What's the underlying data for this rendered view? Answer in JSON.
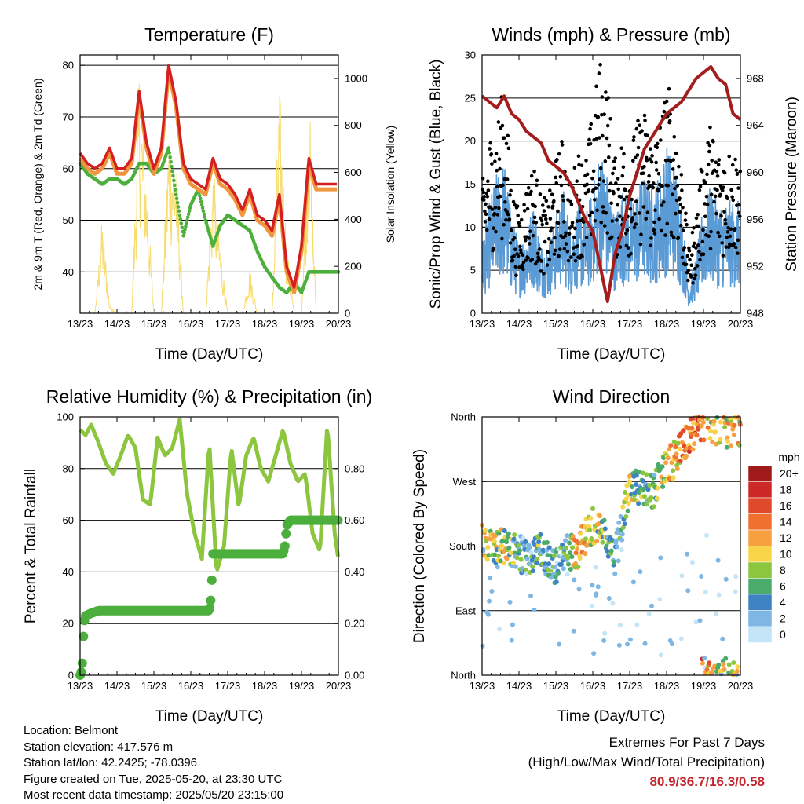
{
  "chart_data": [
    {
      "type": "line",
      "title": "Temperature (F)",
      "xlabel": "Time (Day/UTC)",
      "ylabel": "2m & 9m T (Red, Orange) & 2m Td (Green)",
      "ylabel_right": "Solar Insolation (Yellow)",
      "x_ticks": [
        "13/23",
        "14/23",
        "15/23",
        "16/23",
        "17/23",
        "18/23",
        "19/23",
        "20/23"
      ],
      "ylim": [
        32,
        82
      ],
      "y_ticks": [
        40,
        50,
        60,
        70,
        80
      ],
      "ylim_right": [
        0,
        1100
      ],
      "y_ticks_right": [
        0,
        200,
        400,
        600,
        800,
        1000
      ],
      "grid": "horizontal",
      "colors": {
        "t2m": "#d42020",
        "t9m": "#f0963c",
        "td": "#4daf3c",
        "solar": "#f7dc6f"
      },
      "x": [
        0,
        0.2,
        0.4,
        0.6,
        0.8,
        1.0,
        1.2,
        1.4,
        1.6,
        1.8,
        2.0,
        2.2,
        2.4,
        2.6,
        2.8,
        3.0,
        3.2,
        3.4,
        3.6,
        3.8,
        4.0,
        4.2,
        4.4,
        4.6,
        4.8,
        5.0,
        5.2,
        5.4,
        5.6,
        5.8,
        6.0,
        6.2,
        6.4,
        6.6,
        6.8,
        7.0
      ],
      "series": [
        {
          "name": "2m T",
          "values": [
            63,
            61,
            60,
            61,
            64,
            60,
            60,
            62,
            75,
            65,
            60,
            64,
            80,
            73,
            61,
            58,
            57,
            56,
            62,
            58,
            57,
            55,
            52,
            56,
            51,
            50,
            48,
            55,
            41,
            37,
            45,
            62,
            57,
            57,
            57,
            57
          ]
        },
        {
          "name": "9m T",
          "values": [
            62,
            60,
            59,
            60,
            63,
            59,
            59,
            61,
            74,
            64,
            59,
            63,
            79,
            72,
            60,
            57,
            56,
            55,
            61,
            57,
            56,
            54,
            51,
            55,
            50,
            49,
            47,
            54,
            40,
            36,
            44,
            61,
            56,
            56,
            56,
            56
          ]
        },
        {
          "name": "2m Td",
          "values": [
            61,
            59,
            58,
            57,
            58,
            58,
            57,
            58,
            61,
            61,
            59,
            60,
            64,
            55,
            47,
            53,
            56,
            50,
            45,
            49,
            51,
            50,
            49,
            48,
            44,
            41,
            39,
            37,
            36,
            38,
            36,
            40,
            40,
            40,
            40,
            40
          ]
        },
        {
          "name": "Solar",
          "values": [
            0,
            0,
            0,
            420,
            40,
            0,
            0,
            0,
            1080,
            600,
            0,
            0,
            820,
            700,
            0,
            0,
            0,
            0,
            650,
            300,
            0,
            0,
            0,
            200,
            0,
            0,
            0,
            1000,
            300,
            0,
            0,
            1000,
            0,
            0,
            0,
            0
          ]
        }
      ]
    },
    {
      "type": "scatter",
      "title": "Winds (mph) & Pressure (mb)",
      "xlabel": "Time (Day/UTC)",
      "ylabel": "Sonic/Prop Wind & Gust (Blue, Black)",
      "ylabel_right": "Station Pressure (Maroon)",
      "x_ticks": [
        "13/23",
        "14/23",
        "15/23",
        "16/23",
        "17/23",
        "18/23",
        "19/23",
        "20/23"
      ],
      "ylim": [
        0,
        30
      ],
      "y_ticks": [
        0,
        5,
        10,
        15,
        20,
        25,
        30
      ],
      "ylim_right": [
        948,
        970
      ],
      "y_ticks_right": [
        948,
        952,
        956,
        960,
        964,
        968
      ],
      "grid": "horizontal",
      "colors": {
        "wind": "#5b9bd5",
        "gust": "#000000",
        "pressure": "#a31d1d"
      },
      "pressure_x": [
        0,
        0.2,
        0.4,
        0.6,
        0.8,
        1.0,
        1.2,
        1.4,
        1.6,
        1.8,
        2.0,
        2.2,
        2.4,
        2.6,
        2.8,
        3.0,
        3.2,
        3.4,
        3.6,
        3.8,
        4.0,
        4.2,
        4.4,
        4.6,
        4.8,
        5.0,
        5.2,
        5.4,
        5.6,
        5.8,
        6.0,
        6.2,
        6.4,
        6.6,
        6.8,
        7.0
      ],
      "pressure": [
        966.5,
        966,
        965.5,
        966.5,
        965,
        964.5,
        963.5,
        963,
        962.5,
        961,
        960.5,
        960,
        959,
        957.5,
        956,
        955,
        952,
        949,
        953,
        955,
        958,
        960,
        962,
        963,
        964,
        965,
        965.5,
        966,
        967,
        968,
        968.5,
        969,
        968,
        967.5,
        965,
        964.5
      ],
      "wind_mean": [
        5,
        8,
        10,
        11,
        7,
        5,
        6,
        8,
        5,
        5,
        7,
        9,
        6,
        8,
        7,
        9,
        12,
        10,
        7,
        9,
        8,
        9,
        10,
        9,
        10,
        12,
        11,
        8,
        2,
        4,
        8,
        9,
        8,
        8,
        8,
        8
      ],
      "gust_mean": [
        10,
        14,
        15,
        18,
        10,
        8,
        10,
        12,
        9,
        9,
        12,
        14,
        10,
        13,
        12,
        16,
        20,
        18,
        12,
        14,
        13,
        15,
        16,
        14,
        15,
        18,
        17,
        12,
        5,
        8,
        13,
        15,
        13,
        13,
        13,
        13
      ]
    },
    {
      "type": "line",
      "title": "Relative Humidity (%) & Precipitation (in)",
      "xlabel": "Time (Day/UTC)",
      "ylabel": "Percent & Total Rainfall",
      "x_ticks": [
        "13/23",
        "14/23",
        "15/23",
        "16/23",
        "17/23",
        "18/23",
        "19/23",
        "20/23"
      ],
      "ylim": [
        0,
        100
      ],
      "y_ticks": [
        0,
        20,
        40,
        60,
        80,
        100
      ],
      "ylim_right": [
        0,
        1.0
      ],
      "y_ticks_right": [
        "0.00",
        "0.20",
        "0.40",
        "0.60",
        "0.80"
      ],
      "grid": "horizontal",
      "colors": {
        "rh": "#8cc63e",
        "precip": "#4caf3d"
      },
      "rh_x": [
        0,
        0.15,
        0.3,
        0.5,
        0.7,
        0.9,
        1.1,
        1.3,
        1.5,
        1.7,
        1.9,
        2.1,
        2.3,
        2.5,
        2.7,
        2.9,
        3.1,
        3.3,
        3.5,
        3.7,
        3.9,
        4.1,
        4.3,
        4.5,
        4.7,
        4.9,
        5.1,
        5.3,
        5.5,
        5.7,
        5.9,
        6.1,
        6.3,
        6.5,
        6.7,
        6.9,
        7.0
      ],
      "rh": [
        95,
        93,
        97,
        90,
        82,
        78,
        85,
        93,
        88,
        68,
        66,
        92,
        85,
        88,
        99,
        70,
        55,
        45,
        90,
        40,
        50,
        88,
        65,
        85,
        92,
        80,
        75,
        85,
        95,
        82,
        75,
        78,
        55,
        48,
        97,
        55,
        45
      ],
      "precip_x": [
        0,
        0.05,
        0.08,
        0.1,
        0.15,
        0.3,
        0.5,
        1.0,
        2.0,
        3.0,
        3.5,
        3.55,
        3.6,
        4.0,
        5.0,
        5.5,
        5.55,
        5.6,
        5.7,
        6.0,
        7.0
      ],
      "precip": [
        0.0,
        0.02,
        0.1,
        0.2,
        0.23,
        0.24,
        0.25,
        0.25,
        0.25,
        0.25,
        0.25,
        0.3,
        0.47,
        0.47,
        0.47,
        0.47,
        0.5,
        0.58,
        0.6,
        0.6,
        0.6
      ]
    },
    {
      "type": "scatter",
      "title": "Wind Direction",
      "xlabel": "Time (Day/UTC)",
      "ylabel": "Direction (Colored By Speed)",
      "x_ticks": [
        "13/23",
        "14/23",
        "15/23",
        "16/23",
        "17/23",
        "18/23",
        "19/23",
        "20/23"
      ],
      "y_ticks": [
        "North",
        "East",
        "South",
        "West",
        "North"
      ],
      "ylim": [
        0,
        360
      ],
      "grid": "horizontal",
      "legend": {
        "title": "mph",
        "labels": [
          "20+",
          "18",
          "16",
          "14",
          "12",
          "10",
          "8",
          "6",
          "4",
          "2",
          "0"
        ],
        "colors": [
          "#a01a1a",
          "#cc2828",
          "#e04a2a",
          "#f07030",
          "#f7a040",
          "#f8d448",
          "#8cc63e",
          "#4aab6a",
          "#3e82c4",
          "#7eb6e4",
          "#c4e4f8"
        ]
      },
      "dir_x": [
        0,
        0.3,
        0.6,
        1.0,
        1.3,
        1.6,
        2.0,
        2.3,
        2.6,
        3.0,
        3.3,
        3.6,
        4.0,
        4.3,
        4.6,
        5.0,
        5.3,
        5.6,
        6.0,
        6.3,
        6.6,
        7.0
      ],
      "dir": [
        185,
        182,
        180,
        170,
        160,
        175,
        150,
        170,
        175,
        210,
        200,
        165,
        260,
        265,
        255,
        290,
        305,
        330,
        350,
        345,
        340,
        345
      ],
      "dir_speed": [
        10,
        8,
        9,
        5,
        4,
        6,
        3,
        6,
        12,
        9,
        7,
        4,
        8,
        6,
        5,
        10,
        12,
        14,
        14,
        9,
        10,
        10
      ]
    }
  ],
  "footer": {
    "location": "Location: Belmont",
    "elevation": "Station elevation: 417.576 m",
    "latlon": "Station lat/lon: 42.2425; -78.0396",
    "created": "Figure created on Tue, 2025-05-20, at 23:30 UTC",
    "latest": "Most recent data timestamp: 2025/05/20 23:15:00"
  },
  "extremes": {
    "title": "Extremes For Past 7 Days",
    "subtitle": "(High/Low/Max Wind/Total Precipitation)",
    "values": "80.9/36.7/16.3/0.58"
  }
}
